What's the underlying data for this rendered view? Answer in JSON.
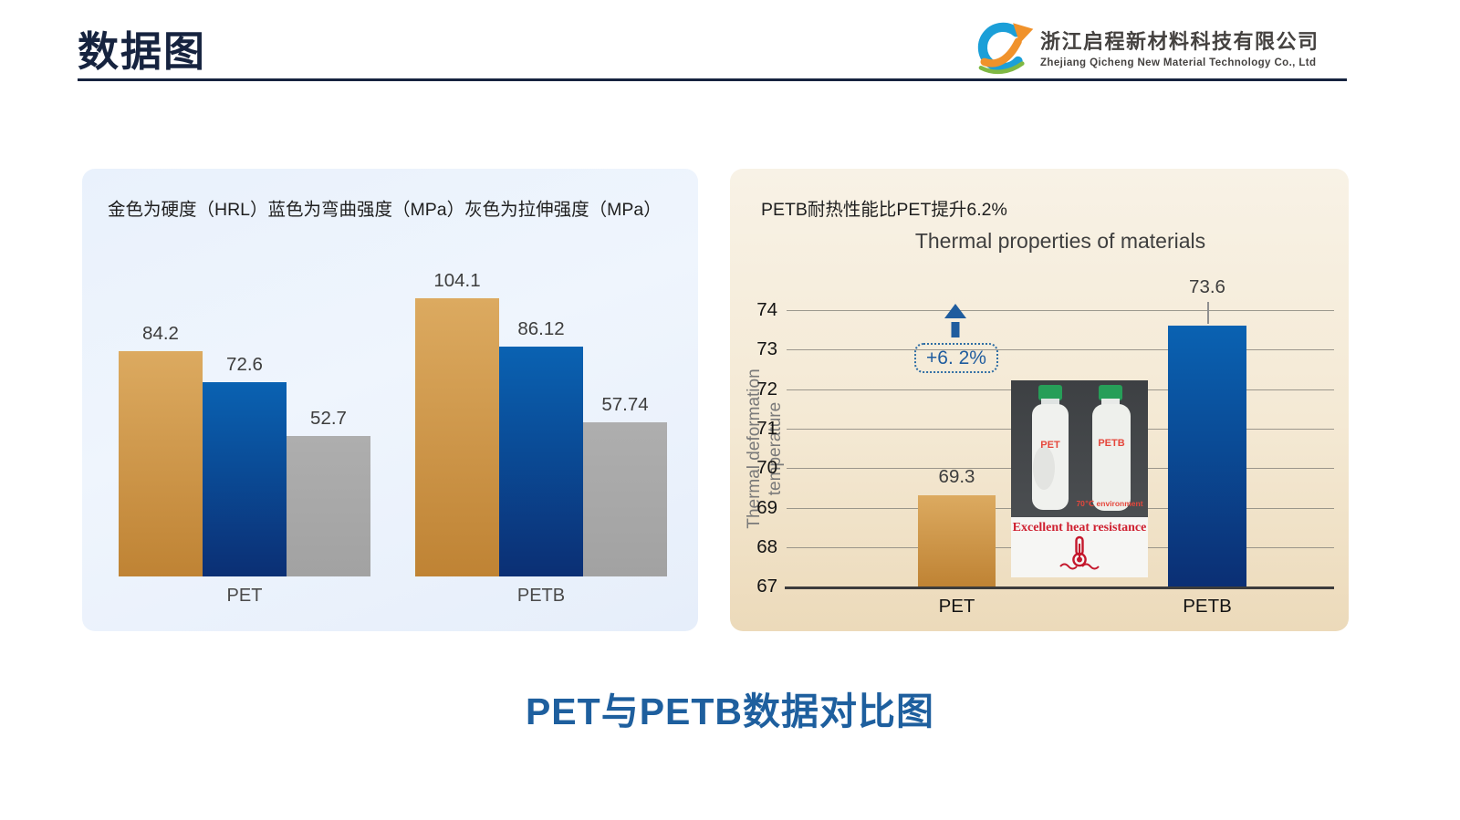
{
  "header": {
    "title": "数据图",
    "logo": {
      "company_cn": "浙江启程新材料科技有限公司",
      "company_en": "Zhejiang Qicheng New Material Technology Co., Ltd"
    }
  },
  "left_panel": {
    "caption": "金色为硬度（HRL）蓝色为弯曲强度（MPa）灰色为拉伸强度（MPa）"
  },
  "right_panel": {
    "caption": "PETB耐热性能比PET提升6.2%",
    "ylabel_line1": "Thermal deformation",
    "ylabel_line2": "temperature",
    "annotation": "+6. 2%",
    "inset": {
      "bottle_left_label": "PET",
      "bottle_right_label": "PETB",
      "environment_text": "70℃ environment",
      "caption": "Excellent heat resistance"
    }
  },
  "footer_title": "PET与PETB数据对比图",
  "chart_data": [
    {
      "type": "bar",
      "panel": "left",
      "title": "",
      "categories": [
        "PET",
        "PETB"
      ],
      "series": [
        {
          "name": "硬度（HRL）",
          "color": "gold",
          "values": [
            84.2,
            104.1
          ]
        },
        {
          "name": "弯曲强度（MPa）",
          "color": "blue",
          "values": [
            72.6,
            86.12
          ]
        },
        {
          "name": "拉伸强度（MPa）",
          "color": "gray",
          "values": [
            52.7,
            57.74
          ]
        }
      ],
      "ylim": [
        0,
        110
      ],
      "grid": false,
      "value_labels": true,
      "legend_position": "caption-text"
    },
    {
      "type": "bar",
      "panel": "right",
      "title": "Thermal properties of materials",
      "ylabel": "Thermal deformation temperature",
      "categories": [
        "PET",
        "PETB"
      ],
      "series": [
        {
          "name": "Thermal deformation temperature",
          "values": [
            69.3,
            73.6
          ]
        }
      ],
      "bar_colors": [
        "gold",
        "blue"
      ],
      "yticks": [
        67,
        68,
        69,
        70,
        71,
        72,
        73,
        74
      ],
      "ylim": [
        67,
        74
      ],
      "grid": true,
      "value_labels": true,
      "annotation": "+6. 2%"
    }
  ],
  "colors": {
    "gold_top": "#dcaa60",
    "gold_bottom": "#bf8334",
    "blue_top": "#0a62b2",
    "blue_bottom": "#0b2f74",
    "gray": "#a9a9a9",
    "navy": "#16233f",
    "accent_blue": "#1f5c9e",
    "footer_blue": "#1e5f9e",
    "red": "#cf2030"
  }
}
